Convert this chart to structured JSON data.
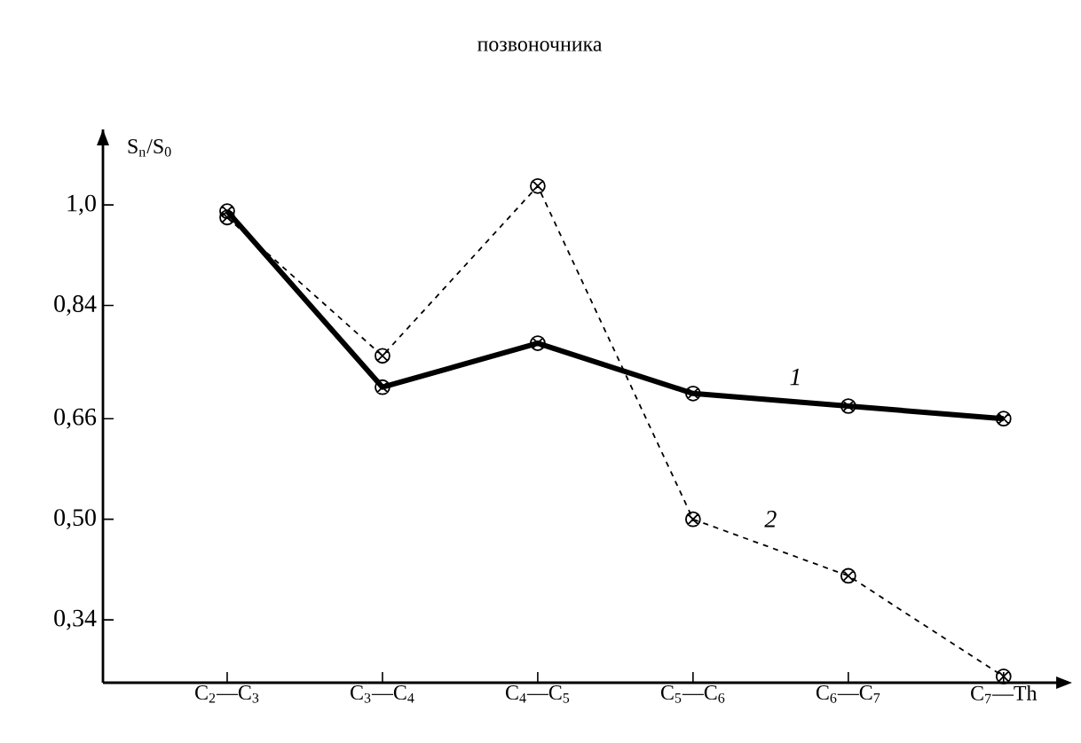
{
  "chart_data": {
    "type": "line",
    "title": "позвоночника",
    "ylabel": "S$_{n}$/S$_{0}$",
    "categories": [
      "C$_{2}$—C$_{3}$",
      "C$_{3}$—C$_{4}$",
      "C$_{4}$—C$_{5}$",
      "C$_{5}$—C$_{6}$",
      "C$_{6}$—C$_{7}$",
      "C$_{7}$—Th"
    ],
    "series": [
      {
        "name": "1",
        "color": "#000000",
        "line_style": "solid",
        "values": [
          0.99,
          0.71,
          0.78,
          0.7,
          0.68,
          0.66
        ]
      },
      {
        "name": "2",
        "color": "#000000",
        "line_style": "dashed",
        "values": [
          0.98,
          0.76,
          1.03,
          0.5,
          0.41,
          0.25
        ]
      }
    ],
    "ylim": [
      0.24,
      1.12
    ],
    "yticks": [
      {
        "value": 0.34,
        "label": "0,34"
      },
      {
        "value": 0.5,
        "label": "0,50"
      },
      {
        "value": 0.66,
        "label": "0,66"
      },
      {
        "value": 0.84,
        "label": "0,84"
      },
      {
        "value": 1.0,
        "label": "1,0"
      }
    ],
    "marker": "cross",
    "grid": false
  }
}
